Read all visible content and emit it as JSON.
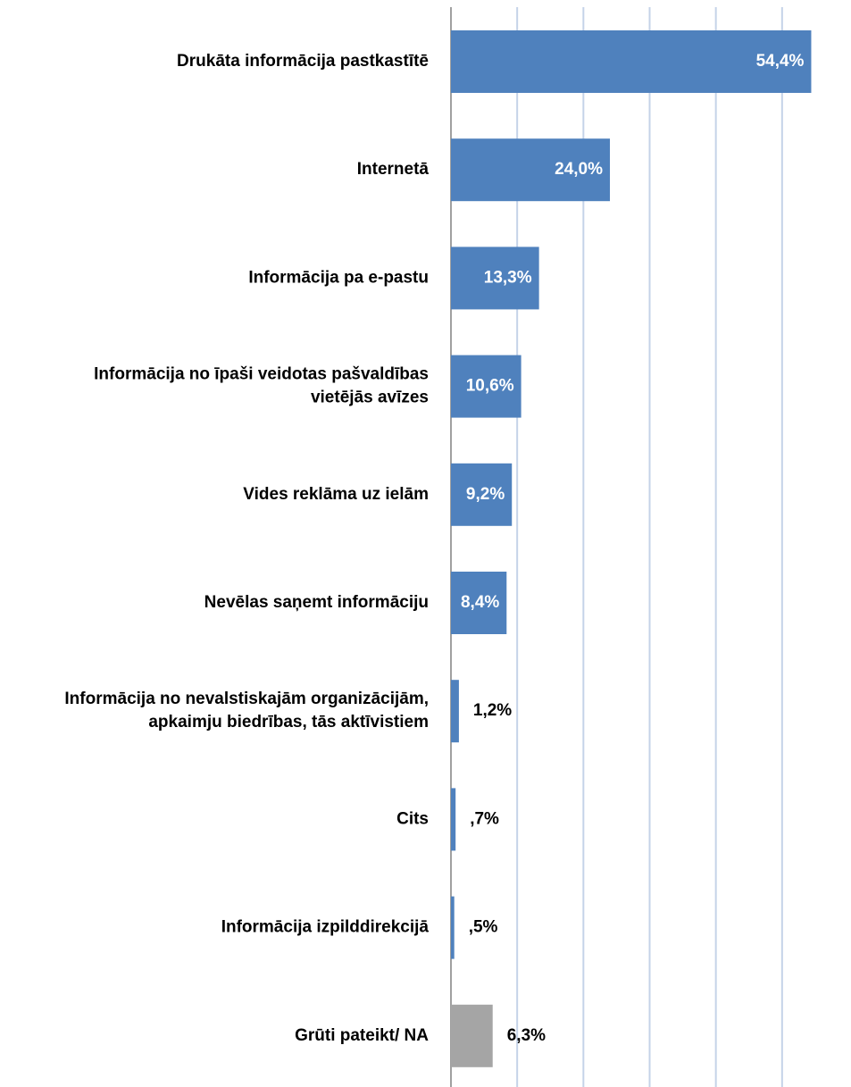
{
  "chart_data": {
    "type": "barh",
    "categories": [
      [
        "Drukāta informācija pastkastītē"
      ],
      [
        "Internetā"
      ],
      [
        "Informācija pa e-pastu"
      ],
      [
        "Informācija no īpaši veidotas pašvaldības",
        "vietējās avīzes"
      ],
      [
        "Vides reklāma uz ielām"
      ],
      [
        "Nevēlas saņemt informāciju"
      ],
      [
        "Informācija no nevalstiskajām organizācijām,",
        "apkaimju biedrības, tās aktīvistiem"
      ],
      [
        "Cits"
      ],
      [
        "Informācija izpilddirekcijā"
      ],
      [
        "Grūti pateikt/ NA"
      ]
    ],
    "values": [
      54.4,
      24.0,
      13.3,
      10.6,
      9.2,
      8.4,
      1.2,
      0.7,
      0.5,
      6.3
    ],
    "value_labels": [
      "54,4%",
      "24,0%",
      "13,3%",
      "10,6%",
      "9,2%",
      "8,4%",
      "1,2%",
      ",7%",
      ",5%",
      "6,3%"
    ],
    "colors": [
      "#4f81bd",
      "#4f81bd",
      "#4f81bd",
      "#4f81bd",
      "#4f81bd",
      "#4f81bd",
      "#4f81bd",
      "#4f81bd",
      "#4f81bd",
      "#a5a5a5"
    ],
    "xlim": [
      0,
      60
    ],
    "xticks": [
      0,
      10,
      20,
      30,
      40,
      50
    ],
    "grid": true
  }
}
